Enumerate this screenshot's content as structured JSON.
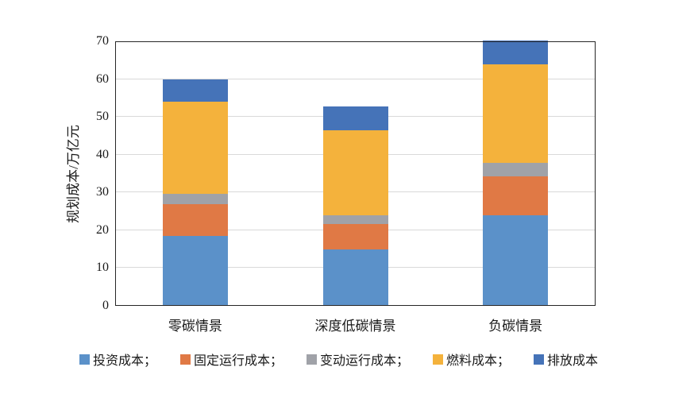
{
  "chart_data": {
    "type": "bar",
    "stacked": true,
    "title": "",
    "xlabel": "",
    "ylabel": "规划成本/万亿元",
    "ylim": [
      0,
      70
    ],
    "yticks": [
      0,
      10,
      20,
      30,
      40,
      50,
      60,
      70
    ],
    "grid": true,
    "legend_position": "bottom",
    "categories": [
      "零碳情景",
      "深度低碳情景",
      "负碳情景"
    ],
    "series": [
      {
        "name": "投资成本",
        "legend_label": "投资成本；",
        "color": "#5B91C9",
        "values": [
          18.5,
          15.0,
          24.0
        ]
      },
      {
        "name": "固定运行成本",
        "legend_label": "固定运行成本；",
        "color": "#E07945",
        "values": [
          8.5,
          6.7,
          10.2
        ]
      },
      {
        "name": "变动运行成本",
        "legend_label": "变动运行成本；",
        "color": "#A0A2A8",
        "values": [
          2.7,
          2.3,
          3.6
        ]
      },
      {
        "name": "燃料成本",
        "legend_label": "燃料成本；",
        "color": "#F4B23C",
        "values": [
          24.3,
          22.5,
          26.2
        ]
      },
      {
        "name": "排放成本",
        "legend_label": "排放成本",
        "color": "#4573B8",
        "values": [
          6.0,
          6.3,
          6.2
        ]
      }
    ],
    "totals": [
      60.0,
      52.8,
      70.2
    ]
  },
  "colors": {
    "axis": "#262626",
    "gridline": "#D9D9D9",
    "text": "#1A1A1A",
    "background": "#FFFFFF"
  }
}
